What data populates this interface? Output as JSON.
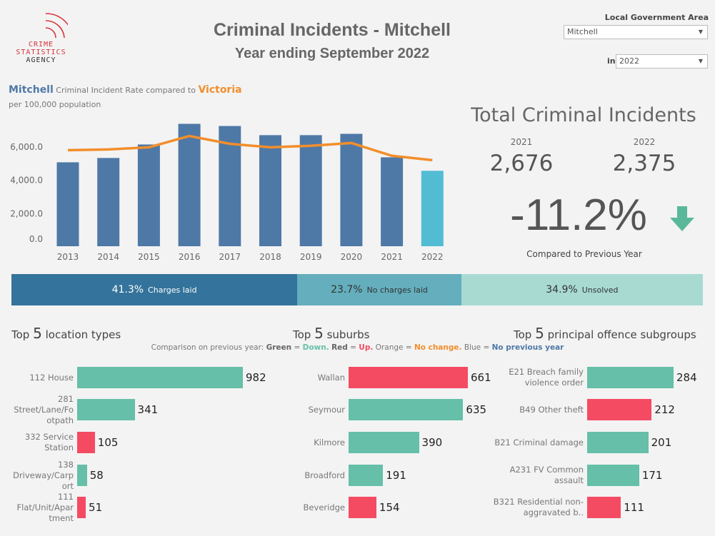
{
  "logo": {
    "line1": "CRIME",
    "line2": "STATISTICS",
    "line3": "AGENCY"
  },
  "header": {
    "title": "Criminal Incidents - Mitchell",
    "subtitle": "Year ending September 2022"
  },
  "filters": {
    "lga_label": "Local Government Area",
    "lga_value": "Mitchell",
    "year_prefix": "in",
    "year_value": "2022"
  },
  "rate_chart": {
    "title_area": "Mitchell",
    "title_mid": "Criminal Incident Rate compared to",
    "title_compare": "Victoria",
    "subtitle": "per 100,000 population"
  },
  "chart_data": {
    "type": "bar",
    "categories": [
      "2013",
      "2014",
      "2015",
      "2016",
      "2017",
      "2018",
      "2019",
      "2020",
      "2021",
      "2022"
    ],
    "series": [
      {
        "name": "Mitchell",
        "type": "bar",
        "values": [
          5040,
          5300,
          6110,
          7350,
          7220,
          6670,
          6670,
          6750,
          5340,
          4530
        ]
      },
      {
        "name": "Victoria",
        "type": "line",
        "values": [
          5770,
          5810,
          5940,
          6620,
          6150,
          5940,
          6030,
          6200,
          5430,
          5170
        ]
      }
    ],
    "yticks": [
      "0.0",
      "2,000.0",
      "4,000.0",
      "6,000.0"
    ],
    "ylim": [
      0,
      7500
    ],
    "grid": false,
    "colors": {
      "bar": "#4e79a7",
      "highlight": "#52bcd3",
      "line": "#f28e2b"
    }
  },
  "totals": {
    "title": "Total Criminal Incidents",
    "year1": "2021",
    "value1": "2,676",
    "year2": "2022",
    "value2": "2,375",
    "change": "-11.2%",
    "change_label": "Compared to Previous Year",
    "arrow_icon": "arrow-down",
    "arrow_color": "#59b89a"
  },
  "outcomes": [
    {
      "pct": "41.3%",
      "label": "Charges laid",
      "share": 41.3,
      "color": "#34739b"
    },
    {
      "pct": "23.7%",
      "label": "No charges laid",
      "share": 23.7,
      "color": "#64aebd"
    },
    {
      "pct": "34.9%",
      "label": "Unsolved",
      "share": 34.9,
      "color": "#a8dad2"
    }
  ],
  "legend": {
    "prefix": "Comparison on previous year:",
    "green": "Green",
    "eq1": "=",
    "down": "Down.",
    "red": "Red",
    "eq2": "=",
    "up": "Up.",
    "orange": "Orange",
    "eq3": "=",
    "nochange": "No change.",
    "blue": "Blue",
    "eq4": "=",
    "noprev": "No previous year"
  },
  "colors": {
    "down": "#66bfa8",
    "up": "#f44b63",
    "nochange": "#f28e2b",
    "noprev": "#4e79a7"
  },
  "top_locations": {
    "pre": "Top",
    "n": "5",
    "post": "location types",
    "items": [
      {
        "label": "112 House",
        "value": 982,
        "status": "down"
      },
      {
        "label": "281 Street/Lane/Fo otpath",
        "value": 341,
        "status": "down"
      },
      {
        "label": "332 Service Station",
        "value": 105,
        "status": "up"
      },
      {
        "label": "138 Driveway/Carp ort",
        "value": 58,
        "status": "down"
      },
      {
        "label": "111 Flat/Unit/Apar tment",
        "value": 51,
        "status": "up"
      }
    ]
  },
  "top_suburbs": {
    "pre": "Top",
    "n": "5",
    "post": "suburbs",
    "items": [
      {
        "label": "Wallan",
        "value": 661,
        "status": "up"
      },
      {
        "label": "Seymour",
        "value": 635,
        "status": "down"
      },
      {
        "label": "Kilmore",
        "value": 390,
        "status": "down"
      },
      {
        "label": "Broadford",
        "value": 191,
        "status": "down"
      },
      {
        "label": "Beveridge",
        "value": 154,
        "status": "up"
      }
    ]
  },
  "top_offences": {
    "pre": "Top",
    "n": "5",
    "post": "principal offence subgroups",
    "items": [
      {
        "label": "E21 Breach family violence order",
        "value": 284,
        "status": "down"
      },
      {
        "label": "B49 Other theft",
        "value": 212,
        "status": "up"
      },
      {
        "label": "B21 Criminal damage",
        "value": 201,
        "status": "down"
      },
      {
        "label": "A231 FV Common assault",
        "value": 171,
        "status": "down"
      },
      {
        "label": "B321 Residential non-aggravated b..",
        "value": 111,
        "status": "up"
      }
    ]
  }
}
